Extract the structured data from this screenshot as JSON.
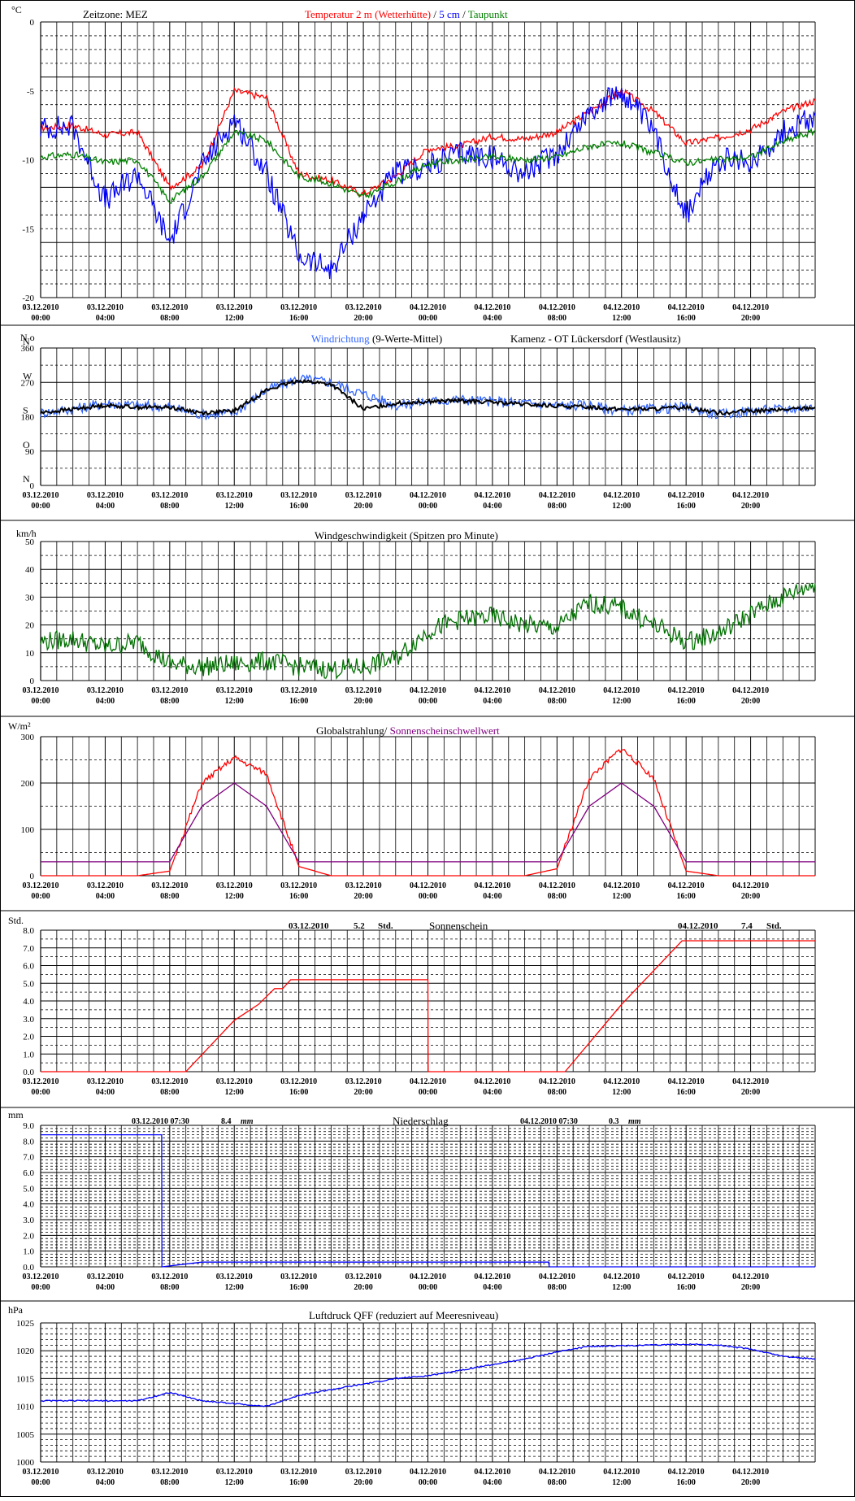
{
  "x_axis": {
    "dates": [
      "03.12.2010",
      "03.12.2010",
      "03.12.2010",
      "03.12.2010",
      "03.12.2010",
      "03.12.2010",
      "04.12.2010",
      "04.12.2010",
      "04.12.2010",
      "04.12.2010",
      "04.12.2010",
      "04.12.2010"
    ],
    "times": [
      "00:00",
      "04:00",
      "08:00",
      "12:00",
      "16:00",
      "20:00",
      "00:00",
      "04:00",
      "08:00",
      "12:00",
      "16:00",
      "20:00"
    ]
  },
  "colors": {
    "red": "#ff0000",
    "blue": "#0000ff",
    "green": "#008000",
    "lightblue": "#3366ff",
    "purple": "#800080",
    "darkgreen": "#007000",
    "black": "#000000"
  },
  "panels": {
    "temperature": {
      "unit": "°C",
      "timezone": "Zeitzone: MEZ",
      "title_temp": "Temperatur 2 m (Wetterhütte)",
      "title_sep1": " / ",
      "title_5cm": "5 cm",
      "title_sep2": " / ",
      "title_dew": "Taupunkt",
      "yticks": [
        "0",
        "-5",
        "-10",
        "-15",
        "-20"
      ]
    },
    "wind_direction": {
      "unit": "N o",
      "title_dir": "Windrichtung",
      "title_avg": " (9-Werte-Mittel)",
      "station": "Kamenz - OT Lückersdorf (Westlausitz)",
      "yticks": [
        "360",
        "270",
        "180",
        "90",
        "0"
      ],
      "dir_labels": [
        "N",
        "W",
        "S",
        "O",
        "N"
      ]
    },
    "wind_speed": {
      "unit": "km/h",
      "title": "Windgeschwindigkeit (Spitzen pro Minute)",
      "yticks": [
        "50",
        "40",
        "30",
        "20",
        "10",
        "0"
      ]
    },
    "radiation": {
      "unit": "W/m²",
      "title_a": "Globalstrahlung/ ",
      "title_b": "Sonnenscheinschwellwert",
      "yticks": [
        "300",
        "200",
        "100",
        "0"
      ]
    },
    "sunshine": {
      "unit": "Std.",
      "title": "Sonnenschein",
      "day1_date": "03.12.2010",
      "day1_value": "5.2",
      "day1_unit": "Std.",
      "day2_date": "04.12.2010",
      "day2_value": "7.4",
      "day2_unit": "Std.",
      "yticks": [
        "8.0",
        "7.0",
        "6.0",
        "5.0",
        "4.0",
        "3.0",
        "2.0",
        "1.0",
        "0.0"
      ]
    },
    "precipitation": {
      "unit": "mm",
      "title": "Niederschlag",
      "day1_date": "03.12.2010 07:30",
      "day1_value": "8.4",
      "day1_unit": "mm",
      "day2_date": "04.12.2010 07:30",
      "day2_value": "0.3",
      "day2_unit": "mm",
      "yticks": [
        "9.0",
        "8.0",
        "7.0",
        "6.0",
        "5.0",
        "4.0",
        "3.0",
        "2.0",
        "1.0",
        "0.0"
      ]
    },
    "pressure": {
      "unit": "hPa",
      "title": "Luftdruck QFF (reduziert auf Meeresniveau)",
      "yticks": [
        "1025",
        "1020",
        "1015",
        "1010",
        "1005",
        "1000"
      ]
    }
  },
  "chart_data": [
    {
      "type": "line",
      "title": "Temperatur 2 m (Wetterhütte) / 5 cm / Taupunkt",
      "ylabel": "°C",
      "ylim": [
        -20,
        0
      ],
      "x": [
        "03.12.2010 00:00",
        "03.12.2010 02:00",
        "03.12.2010 04:00",
        "03.12.2010 06:00",
        "03.12.2010 08:00",
        "03.12.2010 10:00",
        "03.12.2010 12:00",
        "03.12.2010 14:00",
        "03.12.2010 16:00",
        "03.12.2010 18:00",
        "03.12.2010 20:00",
        "03.12.2010 22:00",
        "04.12.2010 00:00",
        "04.12.2010 02:00",
        "04.12.2010 04:00",
        "04.12.2010 06:00",
        "04.12.2010 08:00",
        "04.12.2010 10:00",
        "04.12.2010 12:00",
        "04.12.2010 14:00",
        "04.12.2010 16:00",
        "04.12.2010 18:00",
        "04.12.2010 20:00",
        "04.12.2010 22:00",
        "04.12.2010 24:00"
      ],
      "series": [
        {
          "name": "Temperatur 2 m (Wetterhütte)",
          "color": "#ff0000",
          "values": [
            -7.7,
            -7.5,
            -8.2,
            -8.0,
            -12.0,
            -10.5,
            -5.0,
            -5.5,
            -11.0,
            -11.5,
            -12.5,
            -11.2,
            -9.2,
            -9.0,
            -8.3,
            -8.5,
            -8.0,
            -6.5,
            -5.0,
            -6.5,
            -8.8,
            -8.4,
            -7.8,
            -6.5,
            -5.7
          ]
        },
        {
          "name": "5 cm",
          "color": "#0000ff",
          "values": [
            -7.7,
            -7.6,
            -13.0,
            -11.0,
            -16.0,
            -10.5,
            -7.0,
            -11.0,
            -17.0,
            -18.0,
            -14.0,
            -11.0,
            -10.5,
            -9.5,
            -9.8,
            -11.0,
            -9.5,
            -6.5,
            -5.0,
            -8.0,
            -14.0,
            -10.0,
            -10.2,
            -8.0,
            -6.8
          ]
        },
        {
          "name": "Taupunkt",
          "color": "#008000",
          "values": [
            -9.8,
            -9.6,
            -10.2,
            -10.0,
            -13.0,
            -11.2,
            -8.0,
            -8.6,
            -11.2,
            -11.7,
            -12.7,
            -11.6,
            -10.3,
            -10.0,
            -9.8,
            -10.0,
            -9.8,
            -9.0,
            -8.8,
            -9.5,
            -10.2,
            -10.0,
            -9.8,
            -8.7,
            -7.9
          ]
        }
      ]
    },
    {
      "type": "line",
      "title": "Windrichtung (9-Werte-Mittel)",
      "ylabel": "N o",
      "ylim": [
        0,
        360
      ],
      "x": [
        "03.12.2010 00:00",
        "03.12.2010 02:00",
        "03.12.2010 04:00",
        "03.12.2010 06:00",
        "03.12.2010 08:00",
        "03.12.2010 10:00",
        "03.12.2010 12:00",
        "03.12.2010 14:00",
        "03.12.2010 16:00",
        "03.12.2010 18:00",
        "03.12.2010 20:00",
        "03.12.2010 22:00",
        "04.12.2010 00:00",
        "04.12.2010 02:00",
        "04.12.2010 04:00",
        "04.12.2010 06:00",
        "04.12.2010 08:00",
        "04.12.2010 10:00",
        "04.12.2010 12:00",
        "04.12.2010 14:00",
        "04.12.2010 16:00",
        "04.12.2010 18:00",
        "04.12.2010 20:00",
        "04.12.2010 22:00",
        "04.12.2010 24:00"
      ],
      "series": [
        {
          "name": "Windrichtung",
          "color": "#3366ff",
          "values": [
            190,
            200,
            215,
            210,
            205,
            185,
            190,
            250,
            280,
            270,
            240,
            210,
            220,
            225,
            220,
            215,
            210,
            210,
            195,
            200,
            205,
            185,
            195,
            200,
            205
          ]
        },
        {
          "name": "9-Werte-Mittel",
          "color": "#000000",
          "values": [
            190,
            200,
            210,
            205,
            205,
            190,
            195,
            250,
            275,
            265,
            200,
            215,
            220,
            222,
            218,
            212,
            208,
            205,
            200,
            200,
            205,
            190,
            195,
            198,
            205
          ]
        }
      ]
    },
    {
      "type": "line",
      "title": "Windgeschwindigkeit (Spitzen pro Minute)",
      "ylabel": "km/h",
      "ylim": [
        0,
        50
      ],
      "x": [
        "03.12.2010 00:00",
        "03.12.2010 02:00",
        "03.12.2010 04:00",
        "03.12.2010 06:00",
        "03.12.2010 08:00",
        "03.12.2010 10:00",
        "03.12.2010 12:00",
        "03.12.2010 14:00",
        "03.12.2010 16:00",
        "03.12.2010 18:00",
        "03.12.2010 20:00",
        "03.12.2010 22:00",
        "04.12.2010 00:00",
        "04.12.2010 02:00",
        "04.12.2010 04:00",
        "04.12.2010 06:00",
        "04.12.2010 08:00",
        "04.12.2010 10:00",
        "04.12.2010 12:00",
        "04.12.2010 14:00",
        "04.12.2010 16:00",
        "04.12.2010 18:00",
        "04.12.2010 20:00",
        "04.12.2010 22:00",
        "04.12.2010 24:00"
      ],
      "series": [
        {
          "name": "Windgeschwindigkeit",
          "color": "#007000",
          "values": [
            14,
            15,
            12,
            14,
            6,
            5,
            6,
            7,
            5,
            4,
            5,
            8,
            18,
            22,
            23,
            20,
            19,
            28,
            26,
            20,
            14,
            17,
            24,
            30,
            35
          ]
        }
      ]
    },
    {
      "type": "line",
      "title": "Globalstrahlung/ Sonnenscheinschwellwert",
      "ylabel": "W/m²",
      "ylim": [
        0,
        300
      ],
      "x": [
        "03.12.2010 00:00",
        "03.12.2010 02:00",
        "03.12.2010 04:00",
        "03.12.2010 06:00",
        "03.12.2010 08:00",
        "03.12.2010 10:00",
        "03.12.2010 12:00",
        "03.12.2010 14:00",
        "03.12.2010 16:00",
        "03.12.2010 18:00",
        "03.12.2010 20:00",
        "03.12.2010 22:00",
        "04.12.2010 00:00",
        "04.12.2010 02:00",
        "04.12.2010 04:00",
        "04.12.2010 06:00",
        "04.12.2010 08:00",
        "04.12.2010 10:00",
        "04.12.2010 12:00",
        "04.12.2010 14:00",
        "04.12.2010 16:00",
        "04.12.2010 18:00",
        "04.12.2010 20:00",
        "04.12.2010 22:00",
        "04.12.2010 24:00"
      ],
      "series": [
        {
          "name": "Globalstrahlung",
          "color": "#ff0000",
          "values": [
            0,
            0,
            0,
            0,
            10,
            200,
            255,
            220,
            20,
            0,
            0,
            0,
            0,
            0,
            0,
            0,
            15,
            210,
            275,
            210,
            10,
            0,
            0,
            0,
            0
          ]
        },
        {
          "name": "Sonnenscheinschwellwert",
          "color": "#800080",
          "values": [
            30,
            30,
            30,
            30,
            30,
            150,
            200,
            150,
            30,
            30,
            30,
            30,
            30,
            30,
            30,
            30,
            30,
            150,
            200,
            150,
            30,
            30,
            30,
            30,
            30
          ]
        }
      ]
    },
    {
      "type": "line",
      "title": "Sonnenschein",
      "ylabel": "Std.",
      "ylim": [
        0,
        8
      ],
      "x": [
        "03.12.2010 00:00",
        "03.12.2010 09:00",
        "03.12.2010 12:00",
        "03.12.2010 13:30",
        "03.12.2010 14:30",
        "03.12.2010 15:00",
        "03.12.2010 15:30",
        "04.12.2010 00:00",
        "04.12.2010 00:01",
        "04.12.2010 08:30",
        "04.12.2010 12:00",
        "04.12.2010 15:45",
        "04.12.2010 24:00"
      ],
      "series": [
        {
          "name": "Sonnenschein",
          "color": "#ff0000",
          "values": [
            0,
            0,
            2.9,
            3.8,
            4.7,
            4.7,
            5.2,
            5.2,
            0,
            0,
            3.8,
            7.4,
            7.4
          ]
        }
      ]
    },
    {
      "type": "line",
      "title": "Niederschlag",
      "ylabel": "mm",
      "ylim": [
        0,
        9
      ],
      "x": [
        "03.12.2010 00:00",
        "03.12.2010 07:30",
        "03.12.2010 07:31",
        "03.12.2010 10:00",
        "04.12.2010 07:30",
        "04.12.2010 07:31",
        "04.12.2010 24:00"
      ],
      "series": [
        {
          "name": "Niederschlag",
          "color": "#0000ff",
          "values": [
            8.4,
            8.4,
            0,
            0.3,
            0.3,
            0,
            0
          ]
        }
      ]
    },
    {
      "type": "line",
      "title": "Luftdruck QFF (reduziert auf Meeresniveau)",
      "ylabel": "hPa",
      "ylim": [
        1000,
        1025
      ],
      "x": [
        "03.12.2010 00:00",
        "03.12.2010 02:00",
        "03.12.2010 04:00",
        "03.12.2010 06:00",
        "03.12.2010 08:00",
        "03.12.2010 10:00",
        "03.12.2010 12:00",
        "03.12.2010 14:00",
        "03.12.2010 16:00",
        "03.12.2010 18:00",
        "03.12.2010 20:00",
        "03.12.2010 22:00",
        "04.12.2010 00:00",
        "04.12.2010 02:00",
        "04.12.2010 04:00",
        "04.12.2010 06:00",
        "04.12.2010 08:00",
        "04.12.2010 10:00",
        "04.12.2010 12:00",
        "04.12.2010 14:00",
        "04.12.2010 16:00",
        "04.12.2010 18:00",
        "04.12.2010 20:00",
        "04.12.2010 22:00",
        "04.12.2010 24:00"
      ],
      "series": [
        {
          "name": "Luftdruck QFF",
          "color": "#0000ff",
          "values": [
            1011,
            1011,
            1011,
            1011,
            1012.5,
            1011,
            1010.5,
            1010,
            1012,
            1013,
            1014,
            1015,
            1015.5,
            1016.5,
            1017.5,
            1018.5,
            1019.8,
            1020.8,
            1020.9,
            1021,
            1021.2,
            1021,
            1020.3,
            1019,
            1018.5
          ]
        }
      ]
    }
  ]
}
